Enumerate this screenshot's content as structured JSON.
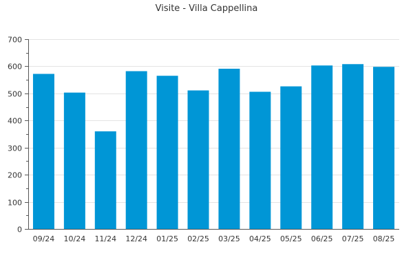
{
  "chart_data": {
    "type": "bar",
    "title": "Visite - Villa Cappellina",
    "xlabel": "",
    "ylabel": "",
    "categories": [
      "09/24",
      "10/24",
      "11/24",
      "12/24",
      "01/25",
      "02/25",
      "03/25",
      "04/25",
      "05/25",
      "06/25",
      "07/25",
      "08/25"
    ],
    "values": [
      572,
      503,
      360,
      582,
      565,
      511,
      591,
      506,
      526,
      603,
      608,
      598
    ],
    "ylim": [
      0,
      700
    ],
    "yticks": [
      0,
      100,
      200,
      300,
      400,
      500,
      600,
      700
    ],
    "ytick_labels": [
      "0",
      "100",
      "200",
      "300",
      "400",
      "500",
      "600",
      "700"
    ],
    "grid": true,
    "legend": "none",
    "bar_color": "#0096d6"
  }
}
